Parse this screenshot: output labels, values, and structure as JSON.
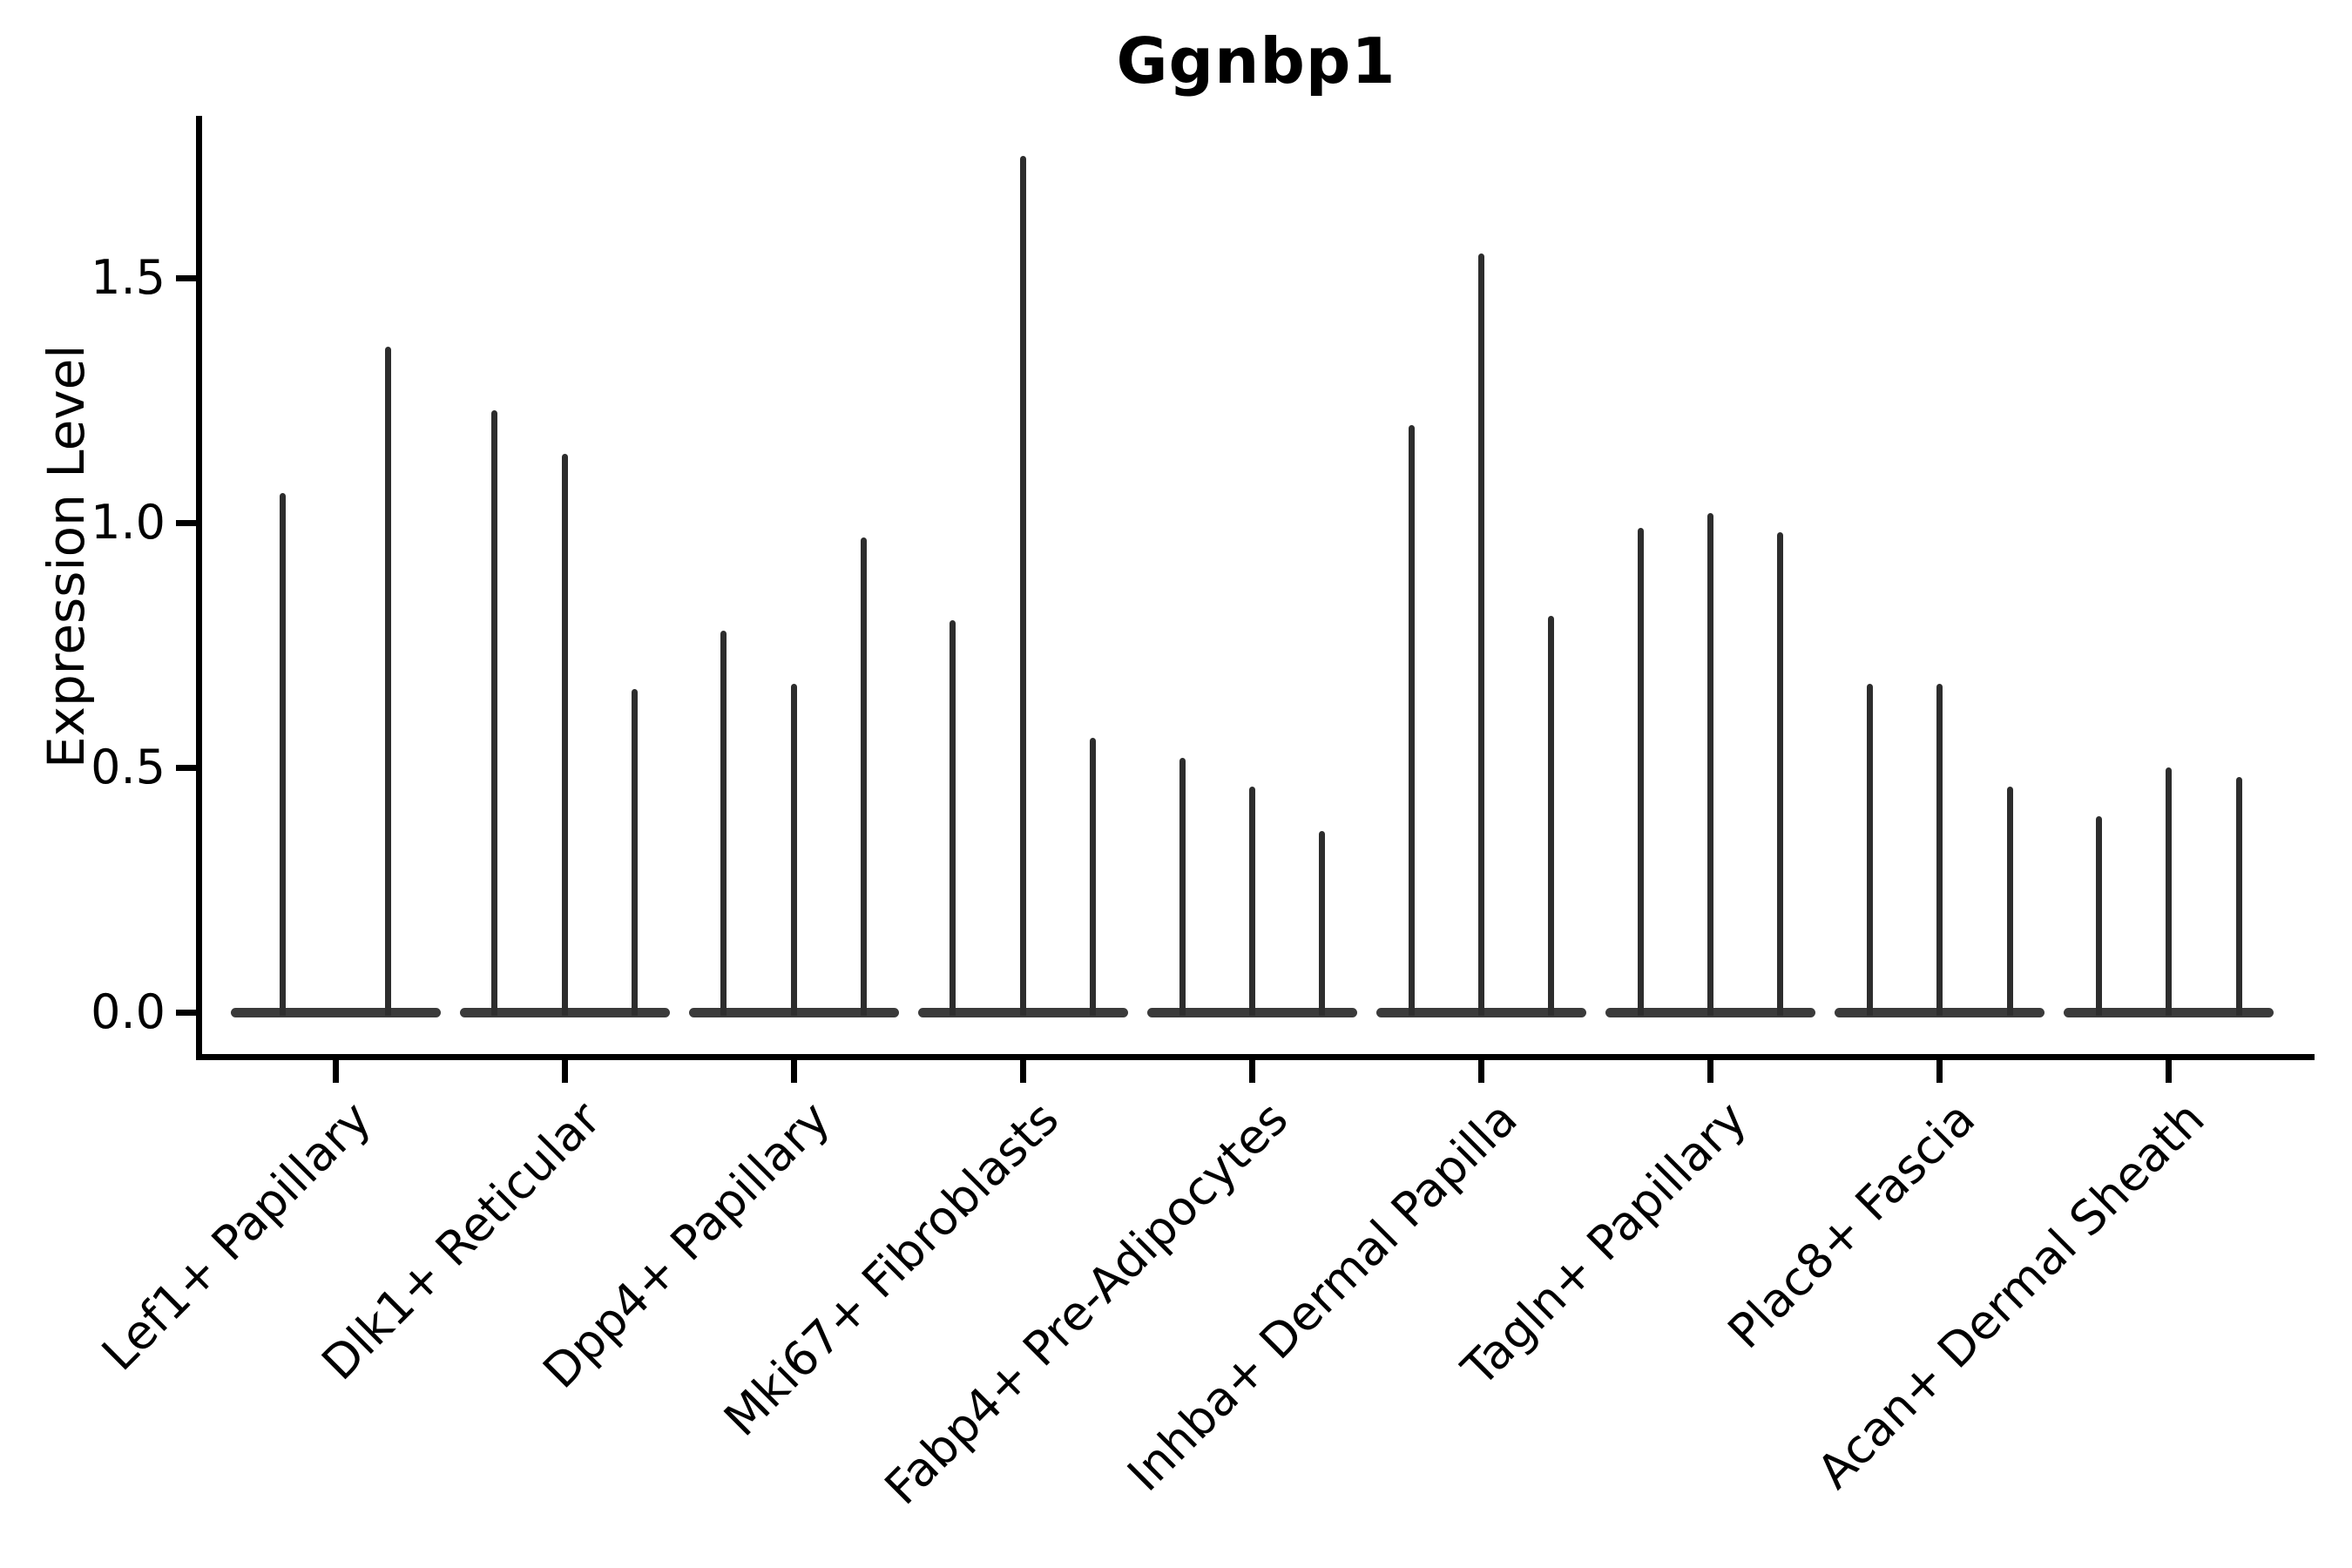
{
  "figure": {
    "title": "Ggnbp1",
    "y_axis": {
      "label": "Expression Level",
      "tick_labels": [
        "0.0",
        "0.5",
        "1.0",
        "1.5"
      ]
    }
  },
  "chart_data": {
    "type": "violin",
    "title": "Ggnbp1",
    "xlabel": "",
    "ylabel": "Expression Level",
    "ylim": [
      0,
      1.82
    ],
    "yticks": [
      0,
      0.5,
      1.0,
      1.5
    ],
    "ytick_labels": [
      "0.0",
      "0.5",
      "1.0",
      "1.5"
    ],
    "grid": false,
    "legend": "none",
    "style": "flat violins collapsed at zero expression with thin vertical spikes marking maximum expression per violin; 2-3 violins per category",
    "categories": [
      "Lef1+ Papillary",
      "Dlk1+ Reticular",
      "Dpp4+ Papillary",
      "Mki67+ Fibroblasts",
      "Fabp4+ Pre-Adipocytes",
      "Inhba+ Dermal Papilla",
      "Tagln+ Papillary",
      "Plac8+ Fascia",
      "Acan+ Dermal Sheath"
    ],
    "series": [
      {
        "category": "Lef1+ Papillary",
        "spike_values": [
          1.06,
          1.36
        ]
      },
      {
        "category": "Dlk1+ Reticular",
        "spike_values": [
          1.23,
          1.14,
          0.66
        ]
      },
      {
        "category": "Dpp4+ Papillary",
        "spike_values": [
          0.78,
          0.67,
          0.97
        ]
      },
      {
        "category": "Mki67+ Fibroblasts",
        "spike_values": [
          0.8,
          1.75,
          0.56
        ]
      },
      {
        "category": "Fabp4+ Pre-Adipocytes",
        "spike_values": [
          0.52,
          0.46,
          0.37
        ]
      },
      {
        "category": "Inhba+ Dermal Papilla",
        "spike_values": [
          1.2,
          1.55,
          0.81
        ]
      },
      {
        "category": "Tagln+ Papillary",
        "spike_values": [
          0.99,
          1.02,
          0.98
        ]
      },
      {
        "category": "Plac8+ Fascia",
        "spike_values": [
          0.67,
          0.67,
          0.46
        ]
      },
      {
        "category": "Acan+ Dermal Sheath",
        "spike_values": [
          0.4,
          0.5,
          0.48
        ]
      }
    ],
    "colors": {
      "violin": "#2d2d2d",
      "spines": "#000000",
      "text": "#000000",
      "background": "#ffffff"
    }
  }
}
